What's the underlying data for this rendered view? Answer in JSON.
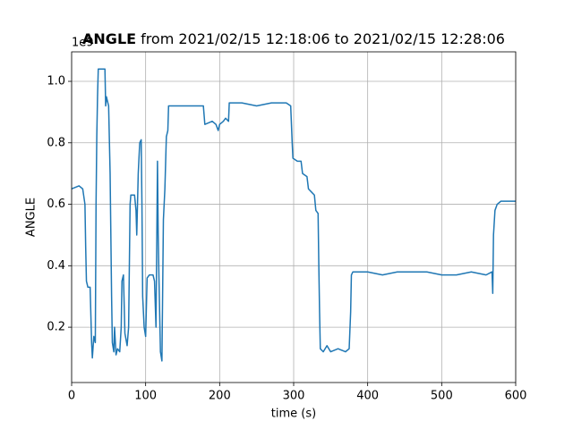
{
  "chart_data": {
    "type": "line",
    "title": "ANGLE",
    "title_suffix": "from 2021/02/15 12:18:06 to 2021/02/15 12:28:06",
    "x_label": "time (s)",
    "y_label": "ANGLE",
    "y_offset_label": "1e9",
    "xlim": [
      0,
      600
    ],
    "xticks": [
      0,
      100,
      200,
      300,
      400,
      500,
      600
    ],
    "ylim": [
      0.02,
      1.096
    ],
    "yticks": [
      0.2,
      0.4,
      0.6,
      0.8,
      {
        "value": 1,
        "label": "1.0"
      }
    ],
    "grid": true,
    "x": [
      0,
      10,
      15,
      18,
      19,
      20,
      22,
      25,
      27,
      28,
      30,
      32,
      33,
      34,
      35,
      36,
      40,
      45,
      46,
      47,
      48,
      50,
      52,
      54,
      55,
      57,
      58,
      60,
      62,
      65,
      67,
      68,
      70,
      72,
      75,
      77,
      79,
      80,
      85,
      87,
      88,
      90,
      92,
      94,
      95,
      96,
      98,
      100,
      102,
      105,
      110,
      112,
      114,
      116,
      117,
      118,
      120,
      122,
      124,
      126,
      128,
      130,
      131,
      140,
      160,
      178,
      180,
      190,
      195,
      198,
      200,
      205,
      208,
      212,
      213,
      230,
      250,
      270,
      290,
      296,
      298,
      299,
      305,
      310,
      312,
      318,
      320,
      324,
      328,
      330,
      333,
      334,
      335,
      336,
      340,
      345,
      350,
      360,
      370,
      375,
      377,
      378,
      380,
      400,
      420,
      440,
      460,
      480,
      500,
      520,
      540,
      560,
      568,
      569,
      570,
      572,
      575,
      580,
      590,
      600
    ],
    "series": [
      {
        "name": "ANGLE",
        "color": "#1f77b4",
        "values": [
          0.65,
          0.66,
          0.65,
          0.6,
          0.46,
          0.35,
          0.33,
          0.33,
          0.15,
          0.1,
          0.17,
          0.15,
          0.6,
          0.82,
          0.95,
          1.04,
          1.04,
          1.04,
          0.92,
          0.95,
          0.94,
          0.92,
          0.7,
          0.3,
          0.15,
          0.12,
          0.2,
          0.11,
          0.13,
          0.12,
          0.2,
          0.35,
          0.37,
          0.18,
          0.14,
          0.2,
          0.6,
          0.63,
          0.63,
          0.58,
          0.5,
          0.7,
          0.8,
          0.81,
          0.6,
          0.3,
          0.2,
          0.17,
          0.36,
          0.37,
          0.37,
          0.35,
          0.2,
          0.74,
          0.5,
          0.36,
          0.12,
          0.09,
          0.55,
          0.65,
          0.82,
          0.84,
          0.92,
          0.92,
          0.92,
          0.92,
          0.86,
          0.87,
          0.86,
          0.84,
          0.86,
          0.87,
          0.88,
          0.87,
          0.93,
          0.93,
          0.92,
          0.93,
          0.93,
          0.92,
          0.8,
          0.75,
          0.74,
          0.74,
          0.7,
          0.69,
          0.65,
          0.64,
          0.63,
          0.58,
          0.57,
          0.4,
          0.25,
          0.13,
          0.12,
          0.14,
          0.12,
          0.13,
          0.12,
          0.13,
          0.25,
          0.37,
          0.38,
          0.38,
          0.37,
          0.38,
          0.38,
          0.38,
          0.37,
          0.37,
          0.38,
          0.37,
          0.38,
          0.31,
          0.5,
          0.58,
          0.6,
          0.61,
          0.61,
          0.61
        ]
      }
    ]
  }
}
